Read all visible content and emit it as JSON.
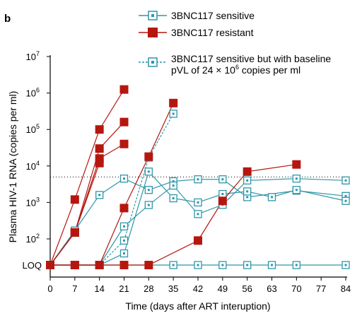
{
  "panel_label": "b",
  "chart_data": {
    "type": "line",
    "xlabel": "Time (days after ART interuption)",
    "ylabel": "Plasma HIV-1 RNA (copies per ml)",
    "x_ticks": [
      0,
      7,
      14,
      21,
      28,
      35,
      42,
      49,
      56,
      63,
      70,
      77,
      84
    ],
    "xlim": [
      0,
      84
    ],
    "y_scale": "log",
    "ylim": [
      10,
      10000000
    ],
    "y_ticks": [
      {
        "value": 10000000,
        "base": "10",
        "exp": "7"
      },
      {
        "value": 1000000,
        "base": "10",
        "exp": "6"
      },
      {
        "value": 100000,
        "base": "10",
        "exp": "5"
      },
      {
        "value": 10000,
        "base": "10",
        "exp": "4"
      },
      {
        "value": 1000,
        "base": "10",
        "exp": "3"
      },
      {
        "value": 100,
        "base": "10",
        "exp": "2"
      }
    ],
    "loq_label": "LOQ",
    "loq_value": 20,
    "threshold_line": 5000,
    "colors": {
      "sensitive": "#2e97a8",
      "resistant": "#b5170f",
      "axis": "#000000"
    },
    "legend": {
      "sensitive": "3BNC117 sensitive",
      "resistant": "3BNC117 resistant",
      "baseline_line1": "3BNC117 sensitive but with baseline",
      "baseline_line2_prefix": "pVL of 24 × 10",
      "baseline_line2_exp": "6",
      "baseline_line2_suffix": " copies per ml"
    },
    "series": [
      {
        "group": "resistant",
        "points": [
          [
            0,
            20
          ],
          [
            7,
            1200
          ],
          [
            14,
            100000
          ],
          [
            21,
            1250000
          ]
        ]
      },
      {
        "group": "resistant",
        "points": [
          [
            0,
            20
          ],
          [
            7,
            150
          ],
          [
            14,
            30000
          ],
          [
            21,
            160000
          ]
        ]
      },
      {
        "group": "resistant",
        "points": [
          [
            0,
            20
          ],
          [
            7,
            150
          ],
          [
            14,
            16000
          ],
          [
            21,
            40000
          ]
        ]
      },
      {
        "group": "resistant",
        "points": [
          [
            0,
            20
          ],
          [
            7,
            150
          ],
          [
            14,
            12000
          ]
        ]
      },
      {
        "group": "resistant",
        "points": [
          [
            0,
            20
          ],
          [
            7,
            20
          ],
          [
            14,
            20
          ],
          [
            21,
            700
          ],
          [
            28,
            18000
          ],
          [
            35,
            530000
          ]
        ]
      },
      {
        "group": "resistant",
        "points": [
          [
            0,
            20
          ],
          [
            7,
            20
          ],
          [
            14,
            20
          ],
          [
            21,
            20
          ],
          [
            28,
            20
          ],
          [
            42,
            90
          ],
          [
            49,
            1100
          ],
          [
            56,
            7000
          ],
          [
            70,
            11000
          ]
        ]
      },
      {
        "group": "sensitive",
        "points": [
          [
            0,
            20
          ],
          [
            7,
            170
          ],
          [
            14,
            1600
          ],
          [
            21,
            4500
          ],
          [
            28,
            2200
          ],
          [
            35,
            3800
          ],
          [
            42,
            4300
          ],
          [
            49,
            4300
          ],
          [
            56,
            1400
          ],
          [
            70,
            2100
          ],
          [
            84,
            1500
          ]
        ]
      },
      {
        "group": "sensitive",
        "points": [
          [
            0,
            20
          ],
          [
            7,
            20
          ],
          [
            14,
            20
          ],
          [
            21,
            40
          ],
          [
            28,
            7000
          ],
          [
            35,
            1300
          ],
          [
            42,
            1000
          ],
          [
            49,
            1700
          ],
          [
            56,
            2000
          ],
          [
            63,
            1400
          ],
          [
            70,
            2200
          ],
          [
            84,
            1100
          ]
        ]
      },
      {
        "group": "sensitive",
        "points": [
          [
            0,
            20
          ],
          [
            7,
            20
          ],
          [
            14,
            20
          ],
          [
            21,
            220
          ],
          [
            28,
            850
          ],
          [
            35,
            2900
          ],
          [
            42,
            480
          ],
          [
            49,
            860
          ],
          [
            56,
            4000
          ],
          [
            70,
            4500
          ],
          [
            84,
            4000
          ]
        ]
      },
      {
        "group": "sensitive",
        "points": [
          [
            0,
            20
          ],
          [
            7,
            20
          ],
          [
            14,
            20
          ],
          [
            21,
            20
          ],
          [
            28,
            20
          ],
          [
            35,
            20
          ],
          [
            42,
            20
          ],
          [
            49,
            20
          ],
          [
            56,
            20
          ],
          [
            63,
            20
          ],
          [
            70,
            20
          ],
          [
            84,
            20
          ]
        ]
      },
      {
        "group": "baseline",
        "points": [
          [
            14,
            20
          ],
          [
            21,
            90
          ],
          [
            28,
            17000
          ],
          [
            35,
            270000
          ]
        ]
      }
    ]
  }
}
